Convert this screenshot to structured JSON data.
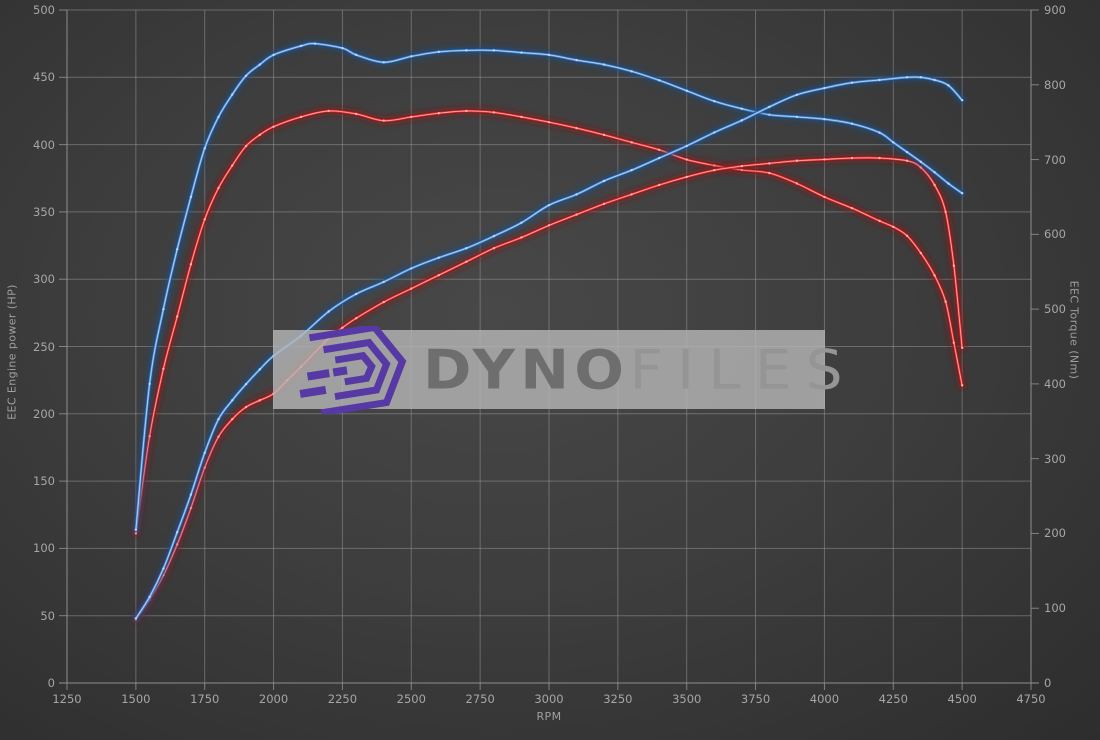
{
  "chart_data": {
    "type": "line",
    "xlabel": "RPM",
    "ylabel_left": "EEC Engine power (HP)",
    "ylabel_right": "EEC Torque (Nm)",
    "x_min": 1250,
    "x_max": 4750,
    "x_ticks": [
      1250,
      1500,
      1750,
      2000,
      2250,
      2500,
      2750,
      3000,
      3250,
      3500,
      3750,
      4000,
      4250,
      4500,
      4750
    ],
    "y_left_min": 0,
    "y_left_max": 500,
    "y_left_ticks": [
      0,
      50,
      100,
      150,
      200,
      250,
      300,
      350,
      400,
      450,
      500
    ],
    "y_right_min": 0,
    "y_right_max": 900,
    "y_right_ticks": [
      0,
      100,
      200,
      300,
      400,
      500,
      600,
      700,
      800,
      900
    ],
    "grid": true,
    "legend": "none",
    "series": [
      {
        "name": "torque-red",
        "axis": "right",
        "unit": "Nm",
        "color": "#e23030",
        "points": [
          [
            1500,
            200
          ],
          [
            1550,
            330
          ],
          [
            1600,
            420
          ],
          [
            1650,
            490
          ],
          [
            1700,
            560
          ],
          [
            1750,
            620
          ],
          [
            1800,
            662
          ],
          [
            1850,
            692
          ],
          [
            1900,
            718
          ],
          [
            1950,
            733
          ],
          [
            2000,
            744
          ],
          [
            2100,
            757
          ],
          [
            2200,
            765
          ],
          [
            2300,
            761
          ],
          [
            2400,
            752
          ],
          [
            2500,
            757
          ],
          [
            2600,
            762
          ],
          [
            2700,
            765
          ],
          [
            2800,
            763
          ],
          [
            2900,
            757
          ],
          [
            3000,
            750
          ],
          [
            3100,
            742
          ],
          [
            3200,
            733
          ],
          [
            3300,
            723
          ],
          [
            3400,
            713
          ],
          [
            3500,
            700
          ],
          [
            3600,
            692
          ],
          [
            3700,
            686
          ],
          [
            3800,
            682
          ],
          [
            3900,
            668
          ],
          [
            4000,
            650
          ],
          [
            4100,
            635
          ],
          [
            4200,
            618
          ],
          [
            4250,
            610
          ],
          [
            4300,
            598
          ],
          [
            4350,
            575
          ],
          [
            4400,
            545
          ],
          [
            4440,
            510
          ],
          [
            4470,
            455
          ],
          [
            4500,
            398
          ]
        ]
      },
      {
        "name": "power-red",
        "axis": "left",
        "unit": "HP",
        "color": "#e23030",
        "points": [
          [
            1500,
            47
          ],
          [
            1550,
            62
          ],
          [
            1600,
            80
          ],
          [
            1650,
            103
          ],
          [
            1700,
            130
          ],
          [
            1750,
            160
          ],
          [
            1800,
            183
          ],
          [
            1850,
            196
          ],
          [
            1900,
            205
          ],
          [
            1950,
            210
          ],
          [
            2000,
            215
          ],
          [
            2050,
            225
          ],
          [
            2100,
            235
          ],
          [
            2200,
            256
          ],
          [
            2250,
            264
          ],
          [
            2300,
            271
          ],
          [
            2400,
            283
          ],
          [
            2500,
            293
          ],
          [
            2600,
            303
          ],
          [
            2700,
            313
          ],
          [
            2800,
            323
          ],
          [
            2900,
            331
          ],
          [
            3000,
            340
          ],
          [
            3100,
            348
          ],
          [
            3200,
            356
          ],
          [
            3300,
            363
          ],
          [
            3400,
            370
          ],
          [
            3500,
            376
          ],
          [
            3600,
            381
          ],
          [
            3700,
            384
          ],
          [
            3800,
            386
          ],
          [
            3900,
            388
          ],
          [
            4000,
            389
          ],
          [
            4100,
            390
          ],
          [
            4200,
            390
          ],
          [
            4300,
            388
          ],
          [
            4350,
            383
          ],
          [
            4400,
            370
          ],
          [
            4440,
            350
          ],
          [
            4470,
            310
          ],
          [
            4500,
            249
          ]
        ]
      },
      {
        "name": "torque-blue",
        "axis": "right",
        "unit": "Nm",
        "color": "#4e8fd2",
        "points": [
          [
            1500,
            205
          ],
          [
            1550,
            400
          ],
          [
            1600,
            500
          ],
          [
            1650,
            580
          ],
          [
            1700,
            650
          ],
          [
            1750,
            715
          ],
          [
            1800,
            757
          ],
          [
            1850,
            787
          ],
          [
            1900,
            812
          ],
          [
            1950,
            827
          ],
          [
            2000,
            840
          ],
          [
            2100,
            852
          ],
          [
            2150,
            855
          ],
          [
            2250,
            849
          ],
          [
            2300,
            840
          ],
          [
            2400,
            830
          ],
          [
            2500,
            838
          ],
          [
            2600,
            844
          ],
          [
            2700,
            846
          ],
          [
            2800,
            846
          ],
          [
            2900,
            843
          ],
          [
            3000,
            840
          ],
          [
            3100,
            833
          ],
          [
            3200,
            827
          ],
          [
            3300,
            818
          ],
          [
            3400,
            806
          ],
          [
            3500,
            792
          ],
          [
            3600,
            778
          ],
          [
            3700,
            768
          ],
          [
            3800,
            760
          ],
          [
            3900,
            757
          ],
          [
            4000,
            754
          ],
          [
            4100,
            748
          ],
          [
            4200,
            736
          ],
          [
            4250,
            723
          ],
          [
            4300,
            710
          ],
          [
            4350,
            697
          ],
          [
            4400,
            683
          ],
          [
            4450,
            668
          ],
          [
            4500,
            655
          ]
        ]
      },
      {
        "name": "power-blue",
        "axis": "left",
        "unit": "HP",
        "color": "#4e8fd2",
        "points": [
          [
            1500,
            48
          ],
          [
            1550,
            64
          ],
          [
            1600,
            85
          ],
          [
            1650,
            112
          ],
          [
            1700,
            140
          ],
          [
            1750,
            171
          ],
          [
            1800,
            196
          ],
          [
            1850,
            210
          ],
          [
            1900,
            222
          ],
          [
            1950,
            233
          ],
          [
            2000,
            243
          ],
          [
            2100,
            258
          ],
          [
            2200,
            276
          ],
          [
            2300,
            289
          ],
          [
            2400,
            298
          ],
          [
            2500,
            308
          ],
          [
            2600,
            316
          ],
          [
            2700,
            323
          ],
          [
            2800,
            332
          ],
          [
            2900,
            342
          ],
          [
            3000,
            355
          ],
          [
            3100,
            363
          ],
          [
            3200,
            373
          ],
          [
            3300,
            381
          ],
          [
            3400,
            390
          ],
          [
            3500,
            399
          ],
          [
            3600,
            409
          ],
          [
            3700,
            418
          ],
          [
            3800,
            428
          ],
          [
            3900,
            437
          ],
          [
            4000,
            442
          ],
          [
            4100,
            446
          ],
          [
            4200,
            448
          ],
          [
            4300,
            450
          ],
          [
            4350,
            450
          ],
          [
            4400,
            448
          ],
          [
            4450,
            444
          ],
          [
            4500,
            433
          ]
        ]
      }
    ]
  },
  "watermark": {
    "brand_part1": "Dyno",
    "brand_part2": "Files"
  },
  "colors": {
    "background_center": "#484848",
    "background_edge": "#2d2d2d",
    "grid_line": "#9b9b9b",
    "axis_text": "#a6a6a6",
    "blue_main": "#4e8fd2",
    "blue_glow": "#1d4e8f",
    "blue_core": "#bcd9f5",
    "red_main": "#e23030",
    "red_glow": "#8d1414",
    "red_core": "#ffb3b3",
    "watermark_box": "#b5b5b5",
    "watermark_logo_purple": "#5639a5",
    "watermark_text_dark": "#6e6e6e",
    "watermark_text_light": "#959595"
  }
}
